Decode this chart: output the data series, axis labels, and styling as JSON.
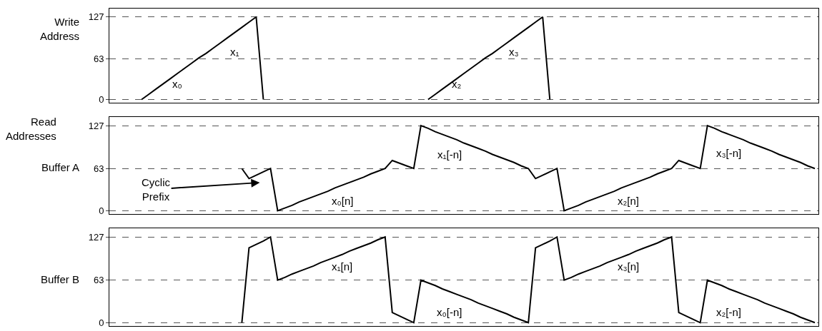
{
  "chart_data": [
    {
      "type": "line",
      "ylabel": "Write\nAddress",
      "categories": [
        null,
        null,
        null,
        null,
        null,
        null,
        null,
        null,
        null,
        null,
        null,
        null,
        null,
        null,
        null,
        null,
        null,
        null,
        null,
        null,
        null,
        null,
        null,
        null,
        null,
        null,
        null,
        null,
        null,
        null,
        null,
        null,
        null,
        null,
        null,
        null,
        null,
        null,
        null,
        null,
        null,
        null,
        null,
        null,
        null,
        null,
        null,
        null,
        null,
        null,
        null,
        null,
        null,
        null,
        null,
        null,
        null,
        null,
        null,
        null,
        null,
        null,
        null,
        null,
        null,
        null,
        null,
        null,
        null,
        null,
        null,
        null,
        null,
        null,
        null,
        null,
        null,
        null,
        null,
        null,
        null,
        null,
        null,
        null,
        null,
        null,
        null,
        null,
        null,
        null,
        null,
        null,
        null,
        null,
        null,
        null,
        null,
        null,
        null
      ],
      "series": [
        {
          "color": "#000000",
          "values": [
            null,
            null,
            null,
            null,
            0,
            8,
            16,
            24,
            32,
            40,
            48,
            56,
            64,
            71,
            79,
            87,
            95,
            103,
            111,
            119,
            127,
            0,
            null,
            null,
            null,
            null,
            null,
            null,
            null,
            null,
            null,
            null,
            null,
            null,
            null,
            null,
            null,
            null,
            null,
            null,
            null,
            null,
            null,
            null,
            0,
            8,
            16,
            24,
            32,
            40,
            48,
            56,
            64,
            71,
            79,
            87,
            95,
            103,
            111,
            119,
            127,
            0,
            null,
            null,
            null,
            null,
            null,
            null,
            null,
            null,
            null,
            null,
            null,
            null,
            null,
            null,
            null,
            null,
            null,
            null,
            null,
            null,
            null,
            null,
            null,
            null,
            null,
            null,
            null,
            null,
            null,
            null,
            null,
            null,
            null,
            null,
            null,
            null,
            null
          ]
        }
      ],
      "ylim": [
        -5,
        140
      ],
      "yticks": [
        0,
        63,
        127
      ],
      "grid": "y",
      "tick_labels": "y",
      "line_style": "solid",
      "marker": "none",
      "annotations": [
        "x₀",
        "x₁",
        "x₂",
        "x₃"
      ]
    },
    {
      "type": "line",
      "title": "Read\nAddresses",
      "ylabel": "Buffer A",
      "categories": [
        null,
        null,
        null,
        null,
        null,
        null,
        null,
        null,
        null,
        null,
        null,
        null,
        null,
        null,
        null,
        null,
        null,
        null,
        null,
        null,
        null,
        null,
        null,
        null,
        null,
        null,
        null,
        null,
        null,
        null,
        null,
        null,
        null,
        null,
        null,
        null,
        null,
        null,
        null,
        null,
        null,
        null,
        null,
        null,
        null,
        null,
        null,
        null,
        null,
        null,
        null,
        null,
        null,
        null,
        null,
        null,
        null,
        null,
        null,
        null,
        null,
        null,
        null,
        null,
        null,
        null,
        null,
        null,
        null,
        null,
        null,
        null,
        null,
        null,
        null,
        null,
        null,
        null,
        null,
        null,
        null,
        null,
        null,
        null,
        null,
        null,
        null,
        null,
        null,
        null,
        null,
        null,
        null,
        null,
        null,
        null,
        null,
        null,
        null
      ],
      "series": [
        {
          "color": "#000000",
          "values": [
            null,
            null,
            null,
            null,
            null,
            null,
            null,
            null,
            null,
            null,
            null,
            null,
            null,
            null,
            null,
            null,
            null,
            null,
            63,
            48,
            53,
            58,
            63,
            0,
            4,
            8,
            13,
            17,
            21,
            25,
            29,
            34,
            38,
            42,
            46,
            50,
            55,
            59,
            63,
            75,
            71,
            67,
            63,
            127,
            123,
            118,
            114,
            110,
            106,
            101,
            97,
            93,
            89,
            84,
            80,
            76,
            72,
            67,
            63,
            48,
            53,
            58,
            63,
            0,
            4,
            8,
            13,
            17,
            21,
            25,
            29,
            34,
            38,
            42,
            46,
            50,
            55,
            59,
            63,
            75,
            71,
            67,
            63,
            127,
            123,
            118,
            114,
            110,
            106,
            101,
            97,
            93,
            89,
            84,
            80,
            76,
            72,
            67,
            63
          ]
        }
      ],
      "ylim": [
        -5,
        140
      ],
      "yticks": [
        0,
        63,
        127
      ],
      "grid": "y",
      "tick_labels": "y",
      "line_style": "solid",
      "marker": "none",
      "annotations": [
        "Cyclic\nPrefix",
        "x₀[n]",
        "x₁[-n]",
        "x₂[n]",
        "x₃[-n]"
      ]
    },
    {
      "type": "line",
      "ylabel": "Buffer B",
      "categories": [
        null,
        null,
        null,
        null,
        null,
        null,
        null,
        null,
        null,
        null,
        null,
        null,
        null,
        null,
        null,
        null,
        null,
        null,
        null,
        null,
        null,
        null,
        null,
        null,
        null,
        null,
        null,
        null,
        null,
        null,
        null,
        null,
        null,
        null,
        null,
        null,
        null,
        null,
        null,
        null,
        null,
        null,
        null,
        null,
        null,
        null,
        null,
        null,
        null,
        null,
        null,
        null,
        null,
        null,
        null,
        null,
        null,
        null,
        null,
        null,
        null,
        null,
        null,
        null,
        null,
        null,
        null,
        null,
        null,
        null,
        null,
        null,
        null,
        null,
        null,
        null,
        null,
        null,
        null,
        null,
        null,
        null,
        null,
        null,
        null,
        null,
        null,
        null,
        null,
        null,
        null,
        null,
        null,
        null,
        null,
        null,
        null,
        null,
        null
      ],
      "series": [
        {
          "color": "#000000",
          "values": [
            null,
            null,
            null,
            null,
            null,
            null,
            null,
            null,
            null,
            null,
            null,
            null,
            null,
            null,
            null,
            null,
            null,
            null,
            0,
            111,
            116,
            121,
            127,
            63,
            67,
            72,
            76,
            80,
            84,
            89,
            93,
            97,
            101,
            106,
            110,
            114,
            118,
            123,
            127,
            15,
            10,
            5,
            0,
            63,
            59,
            55,
            50,
            46,
            42,
            38,
            34,
            29,
            25,
            21,
            17,
            13,
            8,
            4,
            0,
            111,
            116,
            121,
            127,
            63,
            67,
            72,
            76,
            80,
            84,
            89,
            93,
            97,
            101,
            106,
            110,
            114,
            118,
            123,
            127,
            15,
            10,
            5,
            0,
            63,
            59,
            55,
            50,
            46,
            42,
            38,
            34,
            29,
            25,
            21,
            17,
            13,
            8,
            4,
            0
          ]
        }
      ],
      "ylim": [
        -5,
        140
      ],
      "yticks": [
        0,
        63,
        127
      ],
      "grid": "y",
      "tick_labels": "y",
      "line_style": "solid",
      "marker": "none",
      "annotations": [
        "x₁[n]",
        "x₀[-n]",
        "x₃[n]",
        "x₂[-n]"
      ]
    }
  ]
}
